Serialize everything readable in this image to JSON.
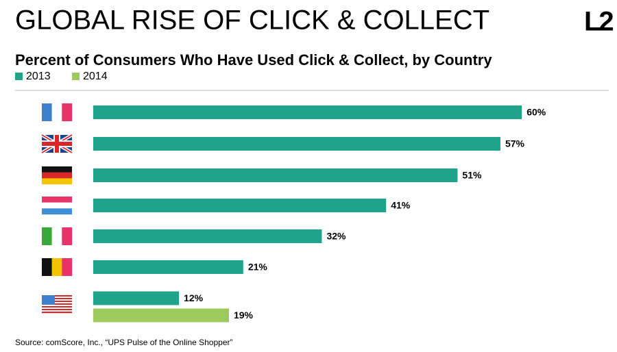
{
  "chart_data": {
    "type": "bar",
    "orientation": "horizontal",
    "title": "GLOBAL RISE OF CLICK & COLLECT",
    "logo": "L2",
    "subtitle": "Percent of Consumers Who Have Used Click & Collect, by Country",
    "source": "Source: comScore, Inc., “UPS Pulse of the Online Shopper”",
    "categories": [
      null,
      null,
      null,
      null,
      null,
      null,
      null
    ],
    "series": [
      {
        "name": "2013",
        "color": "#1fa38a",
        "values": [
          60,
          57,
          51,
          41,
          32,
          21,
          12
        ],
        "value_labels": [
          "60%",
          "57%",
          "51%",
          "41%",
          "32%",
          "21%",
          "12%"
        ]
      },
      {
        "name": "2014",
        "color": "#9dc95d",
        "values": [
          null,
          null,
          null,
          null,
          null,
          null,
          19
        ],
        "value_labels": [
          null,
          null,
          null,
          null,
          null,
          null,
          "19%"
        ]
      }
    ],
    "legend": "top-left"
  }
}
